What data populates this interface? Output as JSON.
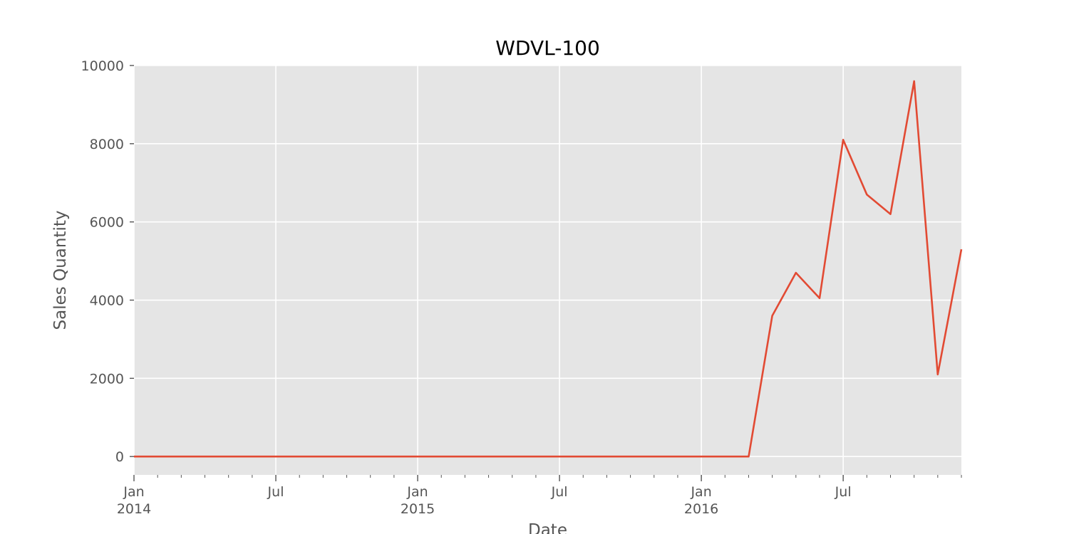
{
  "chart_data": {
    "type": "line",
    "title": "WDVL-100",
    "xlabel": "Date",
    "ylabel": "Sales Quantity",
    "grid": true,
    "x_range": [
      "2014-01",
      "2016-12"
    ],
    "ylim": [
      -470,
      10000
    ],
    "y_ticks": [
      0,
      2000,
      4000,
      6000,
      8000,
      10000
    ],
    "x_ticks": [
      {
        "month": "2014-01",
        "label": "Jan",
        "sublabel": "2014"
      },
      {
        "month": "2014-07",
        "label": "Jul",
        "sublabel": ""
      },
      {
        "month": "2015-01",
        "label": "Jan",
        "sublabel": "2015"
      },
      {
        "month": "2015-07",
        "label": "Jul",
        "sublabel": ""
      },
      {
        "month": "2016-01",
        "label": "Jan",
        "sublabel": "2016"
      },
      {
        "month": "2016-07",
        "label": "Jul",
        "sublabel": ""
      }
    ],
    "series": [
      {
        "color": "#e24a33",
        "x": [
          "2014-01",
          "2014-02",
          "2014-03",
          "2014-04",
          "2014-05",
          "2014-06",
          "2014-07",
          "2014-08",
          "2014-09",
          "2014-10",
          "2014-11",
          "2014-12",
          "2015-01",
          "2015-02",
          "2015-03",
          "2015-04",
          "2015-05",
          "2015-06",
          "2015-07",
          "2015-08",
          "2015-09",
          "2015-10",
          "2015-11",
          "2015-12",
          "2016-01",
          "2016-02",
          "2016-03",
          "2016-04",
          "2016-05",
          "2016-06",
          "2016-07",
          "2016-08",
          "2016-09",
          "2016-10",
          "2016-11",
          "2016-12"
        ],
        "values": [
          0,
          0,
          0,
          0,
          0,
          0,
          0,
          0,
          0,
          0,
          0,
          0,
          0,
          0,
          0,
          0,
          0,
          0,
          0,
          0,
          0,
          0,
          0,
          0,
          0,
          0,
          0,
          3600,
          4700,
          4050,
          8100,
          6700,
          6200,
          9600,
          2100,
          5300
        ]
      }
    ]
  },
  "colors": {
    "plot_background": "#e5e5e5",
    "grid": "#ffffff",
    "tick_color": "#555555"
  }
}
